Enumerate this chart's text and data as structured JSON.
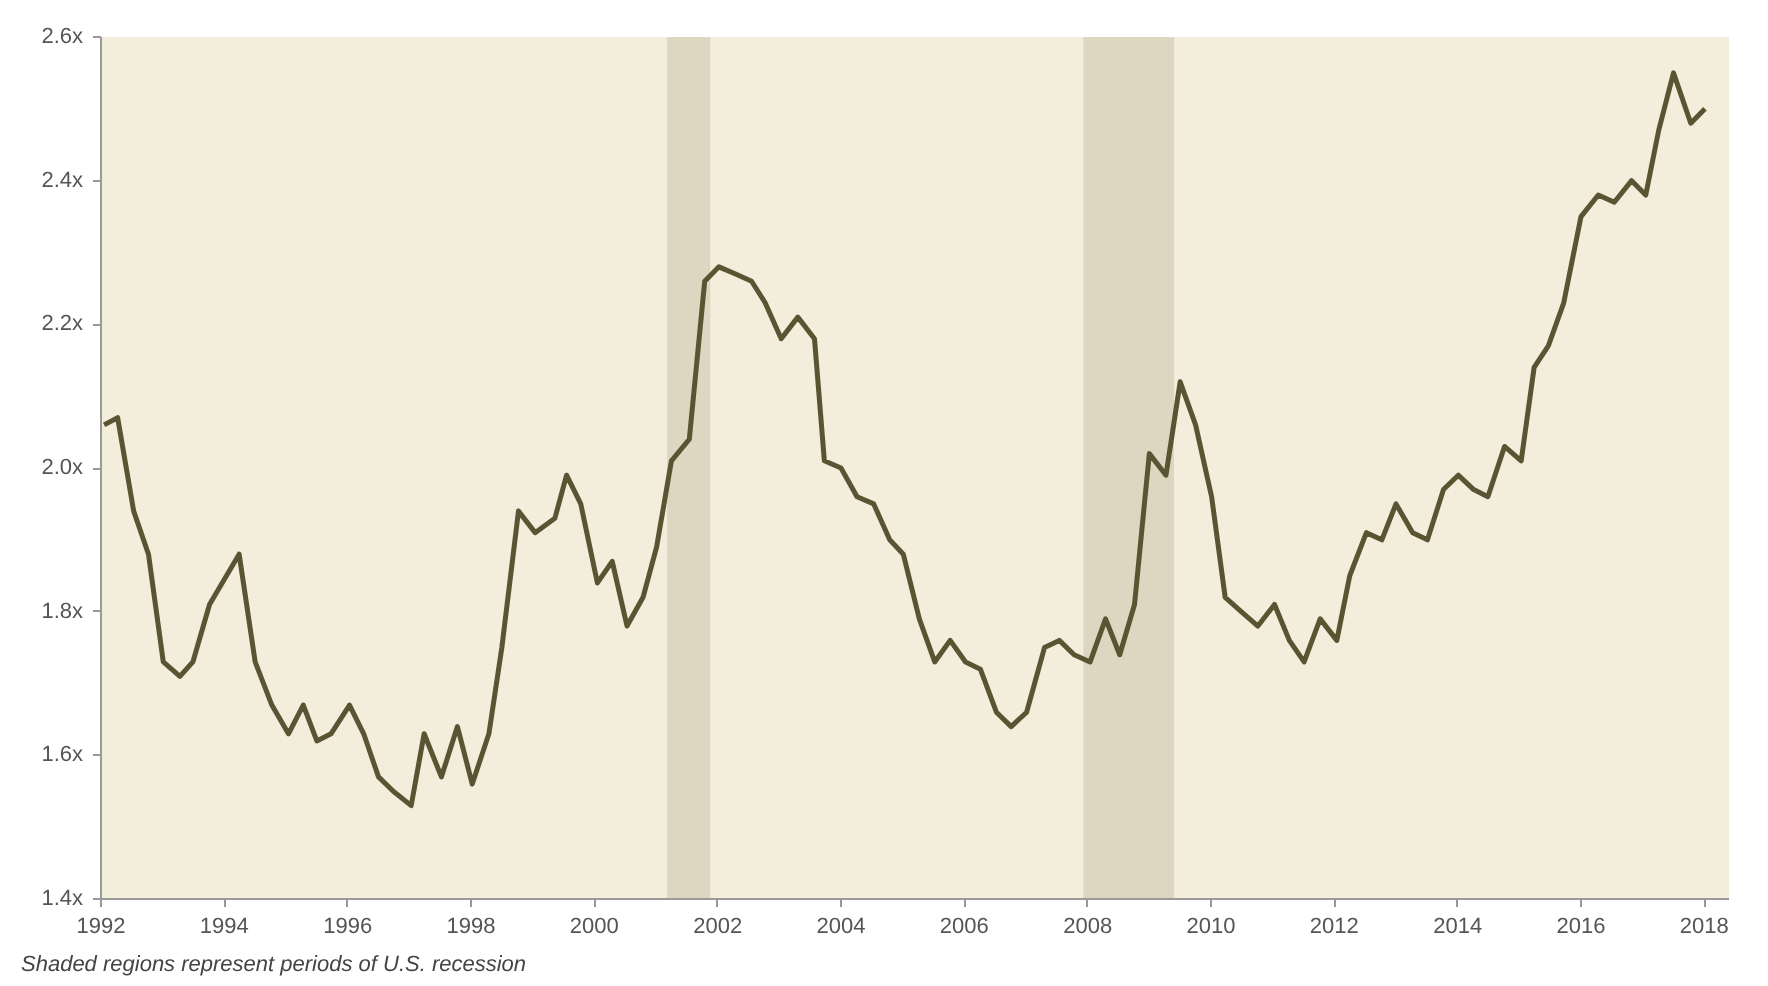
{
  "chart_data": {
    "type": "line",
    "x": [
      1992.05,
      1992.27,
      1992.53,
      1992.77,
      1993.01,
      1993.28,
      1993.49,
      1993.76,
      1994.24,
      1994.5,
      1994.77,
      1995.04,
      1995.28,
      1995.5,
      1995.73,
      1996.03,
      1996.26,
      1996.5,
      1996.74,
      1997.03,
      1997.24,
      1997.52,
      1997.78,
      1998.02,
      1998.29,
      1998.5,
      1998.77,
      1999.04,
      1999.36,
      1999.55,
      1999.78,
      2000.05,
      2000.29,
      2000.53,
      2000.79,
      2001.01,
      2001.25,
      2001.54,
      2001.79,
      2002.02,
      2002.29,
      2002.55,
      2002.77,
      2003.03,
      2003.3,
      2003.57,
      2003.73,
      2004.0,
      2004.26,
      2004.53,
      2004.79,
      2005.01,
      2005.27,
      2005.52,
      2005.77,
      2006.02,
      2006.26,
      2006.52,
      2006.76,
      2007.01,
      2007.3,
      2007.54,
      2007.78,
      2008.04,
      2008.29,
      2008.52,
      2008.76,
      2009.0,
      2009.27,
      2009.5,
      2009.75,
      2010.01,
      2010.23,
      2010.49,
      2010.76,
      2011.03,
      2011.27,
      2011.51,
      2011.77,
      2012.04,
      2012.25,
      2012.52,
      2012.77,
      2013.0,
      2013.27,
      2013.51,
      2013.77,
      2014.01,
      2014.26,
      2014.49,
      2014.76,
      2015.03,
      2015.24,
      2015.47,
      2015.72,
      2016.0,
      2016.28,
      2016.54,
      2016.82,
      2017.05,
      2017.26,
      2017.5,
      2017.78,
      2018.01
    ],
    "series": [
      {
        "color": "#5a5433",
        "values": [
          2.06,
          2.07,
          1.94,
          1.88,
          1.73,
          1.71,
          1.73,
          1.81,
          1.88,
          1.73,
          1.67,
          1.63,
          1.67,
          1.62,
          1.63,
          1.67,
          1.63,
          1.57,
          1.55,
          1.53,
          1.63,
          1.57,
          1.64,
          1.56,
          1.63,
          1.75,
          1.94,
          1.91,
          1.93,
          1.99,
          1.95,
          1.84,
          1.87,
          1.78,
          1.82,
          1.89,
          2.01,
          2.04,
          2.26,
          2.28,
          2.27,
          2.26,
          2.23,
          2.18,
          2.21,
          2.18,
          2.01,
          2.0,
          1.96,
          1.95,
          1.9,
          1.88,
          1.79,
          1.73,
          1.76,
          1.73,
          1.72,
          1.66,
          1.64,
          1.66,
          1.75,
          1.76,
          1.74,
          1.73,
          1.79,
          1.74,
          1.81,
          2.02,
          1.99,
          2.12,
          2.06,
          1.96,
          1.82,
          1.8,
          1.78,
          1.81,
          1.76,
          1.73,
          1.79,
          1.76,
          1.85,
          1.91,
          1.9,
          1.95,
          1.91,
          1.9,
          1.97,
          1.99,
          1.97,
          1.96,
          2.03,
          2.01,
          2.14,
          2.17,
          2.23,
          2.35,
          2.38,
          2.37,
          2.4,
          2.38,
          2.47,
          2.55,
          2.48,
          2.5
        ]
      }
    ],
    "xlim": [
      1992,
      2018.4
    ],
    "xticks": [
      1992,
      1994,
      1996,
      1998,
      2000,
      2002,
      2004,
      2006,
      2008,
      2010,
      2012,
      2014,
      2016,
      2018
    ],
    "ylim": [
      1.4,
      2.6
    ],
    "yticks": [
      {
        "value": 1.4,
        "label": "1.4x"
      },
      {
        "value": 1.6,
        "label": "1.6x"
      },
      {
        "value": 1.8,
        "label": "1.8x"
      },
      {
        "value": 2.0,
        "label": "2.0x"
      },
      {
        "value": 2.2,
        "label": "2.2x"
      },
      {
        "value": 2.4,
        "label": "2.4x"
      },
      {
        "value": 2.6,
        "label": "2.6x"
      }
    ],
    "bands": [
      {
        "axis": "x",
        "from": 2001.18,
        "to": 2001.88,
        "color": "#ddd6c0"
      },
      {
        "axis": "x",
        "from": 2007.93,
        "to": 2009.4,
        "color": "#ddd6c0"
      }
    ],
    "grid": false,
    "annotations": [
      "Shaded regions represent periods of U.S. recession"
    ]
  }
}
